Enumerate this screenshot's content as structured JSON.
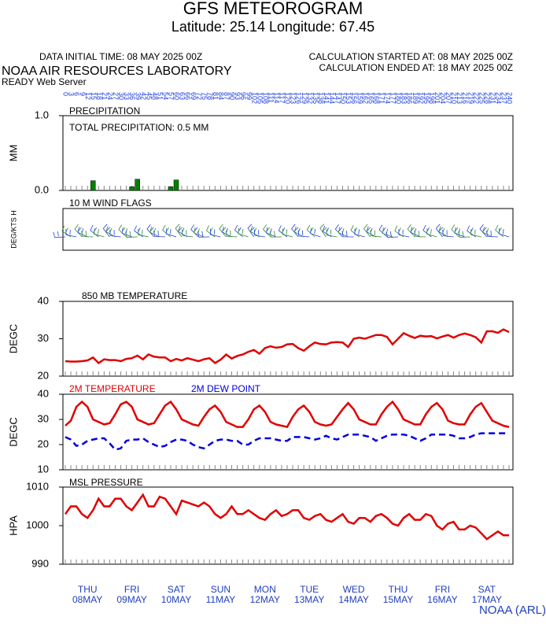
{
  "header": {
    "title": "GFS METEOROGRAM",
    "subtitle": "Latitude: 25.14 Longitude:  67.45",
    "init": "DATA INITIAL TIME: 08 MAY 2025 00Z",
    "started": "CALCULATION STARTED AT: 08 MAY 2025 00Z",
    "ended": "CALCULATION ENDED AT: 18 MAY 2025 00Z",
    "org": "NOAA AIR RESOURCES LABORATORY",
    "server": "READY Web Server",
    "footer": "NOAA (ARL)"
  },
  "hours": [
    0,
    3,
    6,
    9,
    12,
    15,
    18,
    21,
    24,
    27,
    30,
    33,
    36,
    39,
    42,
    45,
    48,
    51,
    54,
    57,
    60,
    63,
    66,
    69,
    72,
    75,
    78,
    81,
    84,
    87,
    90,
    93,
    96,
    99,
    102,
    105,
    108,
    111,
    114,
    117,
    120,
    123,
    126,
    129,
    132,
    135,
    138,
    141,
    144,
    147,
    150,
    153,
    156,
    159,
    162,
    165,
    168,
    171,
    174,
    177,
    180,
    183,
    186,
    189,
    192,
    195,
    198,
    201,
    204,
    207,
    210,
    213,
    216,
    219,
    222,
    225,
    228,
    231,
    234,
    237,
    240
  ],
  "xlim": [
    0,
    240
  ],
  "days": [
    {
      "weekday": "THU",
      "date": "08MAY"
    },
    {
      "weekday": "FRI",
      "date": "09MAY"
    },
    {
      "weekday": "SAT",
      "date": "10MAY"
    },
    {
      "weekday": "SUN",
      "date": "11MAY"
    },
    {
      "weekday": "MON",
      "date": "12MAY"
    },
    {
      "weekday": "TUE",
      "date": "13MAY"
    },
    {
      "weekday": "WED",
      "date": "14MAY"
    },
    {
      "weekday": "THU",
      "date": "15MAY"
    },
    {
      "weekday": "FRI",
      "date": "16MAY"
    },
    {
      "weekday": "SAT",
      "date": "17MAY"
    }
  ],
  "chart_data": [
    {
      "type": "bar",
      "title": "PRECIPITATION",
      "annotation": "TOTAL PRECIPITATION:   0.5 MM",
      "y_label": "MM",
      "color": "#008000",
      "x": [
        15,
        36,
        39,
        57,
        60
      ],
      "values": [
        0.13,
        0.05,
        0.15,
        0.05,
        0.14
      ],
      "ylim": [
        0,
        1
      ],
      "yticks": [
        {
          "value": 0,
          "label": "0.0"
        },
        {
          "value": 1,
          "label": "1.0"
        }
      ]
    },
    {
      "type": "wind",
      "title": "10 M  WIND FLAGS",
      "y_label": "DEG/KTS  H"
    },
    {
      "type": "line",
      "title": "850 MB  TEMPERATURE",
      "y_label": "DEGC",
      "color": "#e00000",
      "ylim": [
        20,
        40
      ],
      "yticks": [
        20,
        30,
        40
      ],
      "values": [
        24,
        23.9,
        23.9,
        24,
        24.2,
        25,
        23.5,
        24.5,
        24.3,
        24.3,
        24,
        24.6,
        24.8,
        25.5,
        24.5,
        25.8,
        25.2,
        25,
        25,
        24,
        24.6,
        24.2,
        24.8,
        24.4,
        24,
        24.5,
        24.8,
        23.5,
        24.4,
        25.8,
        24.7,
        25.4,
        25.8,
        26.5,
        27,
        26,
        27.5,
        28,
        27.6,
        27.8,
        28.5,
        28.6,
        27.5,
        26.8,
        28,
        29,
        28.6,
        28.5,
        29,
        29.1,
        29,
        27.8,
        30,
        30.3,
        30,
        30.5,
        31,
        31,
        30.5,
        28.5,
        30,
        31.5,
        30.8,
        30.2,
        30.8,
        30.6,
        30.7,
        30.1,
        30.6,
        31,
        30.3,
        31,
        31.4,
        31,
        30.4,
        29,
        32,
        32,
        31.6,
        32.5,
        31.8
      ]
    },
    {
      "type": "line",
      "y_label": "DEGC",
      "ylim": [
        10,
        40
      ],
      "yticks": [
        10,
        20,
        30,
        40
      ],
      "series": [
        {
          "name": "2M TEMPERATURE",
          "color": "#e00000",
          "dashed": false,
          "values": [
            27.5,
            29.5,
            35,
            37,
            35,
            30,
            29,
            28,
            28.5,
            32,
            36,
            37,
            35,
            30,
            29,
            28,
            28.5,
            32,
            35.5,
            37,
            34,
            30,
            29,
            28,
            27.5,
            31,
            34,
            35.5,
            33,
            29,
            28,
            27,
            27,
            30,
            34,
            35.5,
            33,
            29,
            28,
            27.5,
            27,
            31,
            34,
            35.5,
            33,
            29,
            28,
            27.5,
            28,
            31,
            34,
            36.5,
            34,
            30,
            29,
            28,
            28,
            32,
            35,
            37,
            34,
            30,
            29,
            28,
            28,
            32,
            35,
            36.5,
            34,
            29.5,
            28.5,
            28,
            28,
            32,
            35,
            36.5,
            33,
            29.5,
            28.5,
            27.5,
            27
          ]
        },
        {
          "name": "2M  DEW POINT",
          "color": "#0000e0",
          "dashed": true,
          "values": [
            23,
            22,
            19.5,
            20,
            21.5,
            22,
            22.5,
            22.5,
            20.5,
            18,
            18.5,
            21.5,
            22,
            22,
            22.5,
            21,
            20,
            19,
            19.5,
            21,
            22,
            22,
            21.5,
            20,
            19,
            18.5,
            20,
            21.5,
            22,
            22,
            21.5,
            21.5,
            20,
            20,
            21.5,
            22.5,
            22.5,
            22.5,
            22,
            21.5,
            21.5,
            23,
            23,
            23,
            22.5,
            22,
            22.5,
            23.5,
            22.5,
            22,
            23,
            24,
            24,
            24,
            23.5,
            23,
            21.5,
            22.5,
            23.5,
            24,
            24,
            24,
            23.5,
            22.5,
            21.5,
            22.5,
            24,
            24,
            24,
            24,
            23.5,
            22.5,
            22.5,
            23,
            24,
            24.5,
            24.5,
            24.5,
            24.5,
            24.5,
            24.5
          ]
        }
      ]
    },
    {
      "type": "line",
      "title": "MSL PRESSURE",
      "y_label": "HPA",
      "color": "#e00000",
      "ylim": [
        990,
        1010
      ],
      "yticks": [
        990,
        1000,
        1010
      ],
      "values": [
        1003,
        1005,
        1005,
        1003,
        1002,
        1004,
        1007,
        1005,
        1005,
        1007,
        1007,
        1005,
        1004,
        1006,
        1008,
        1005,
        1005,
        1007.5,
        1007,
        1005,
        1003,
        1006.5,
        1006,
        1005.5,
        1005,
        1006,
        1005,
        1003,
        1002,
        1003,
        1005,
        1003,
        1003,
        1004,
        1003,
        1002,
        1001.5,
        1003,
        1004,
        1002.5,
        1003,
        1004,
        1004,
        1002,
        1001.5,
        1002.5,
        1003,
        1001.5,
        1001,
        1002,
        1003,
        1001,
        1000.5,
        1002,
        1002,
        1001,
        1002.5,
        1003,
        1002,
        1000.5,
        1000,
        1002,
        1003,
        1001.5,
        1001.5,
        1003,
        1002.5,
        1000,
        999,
        1000.5,
        1001,
        999,
        999,
        1000,
        999.5,
        998,
        996.5,
        997.5,
        998.5,
        997.5,
        997.5
      ]
    }
  ]
}
